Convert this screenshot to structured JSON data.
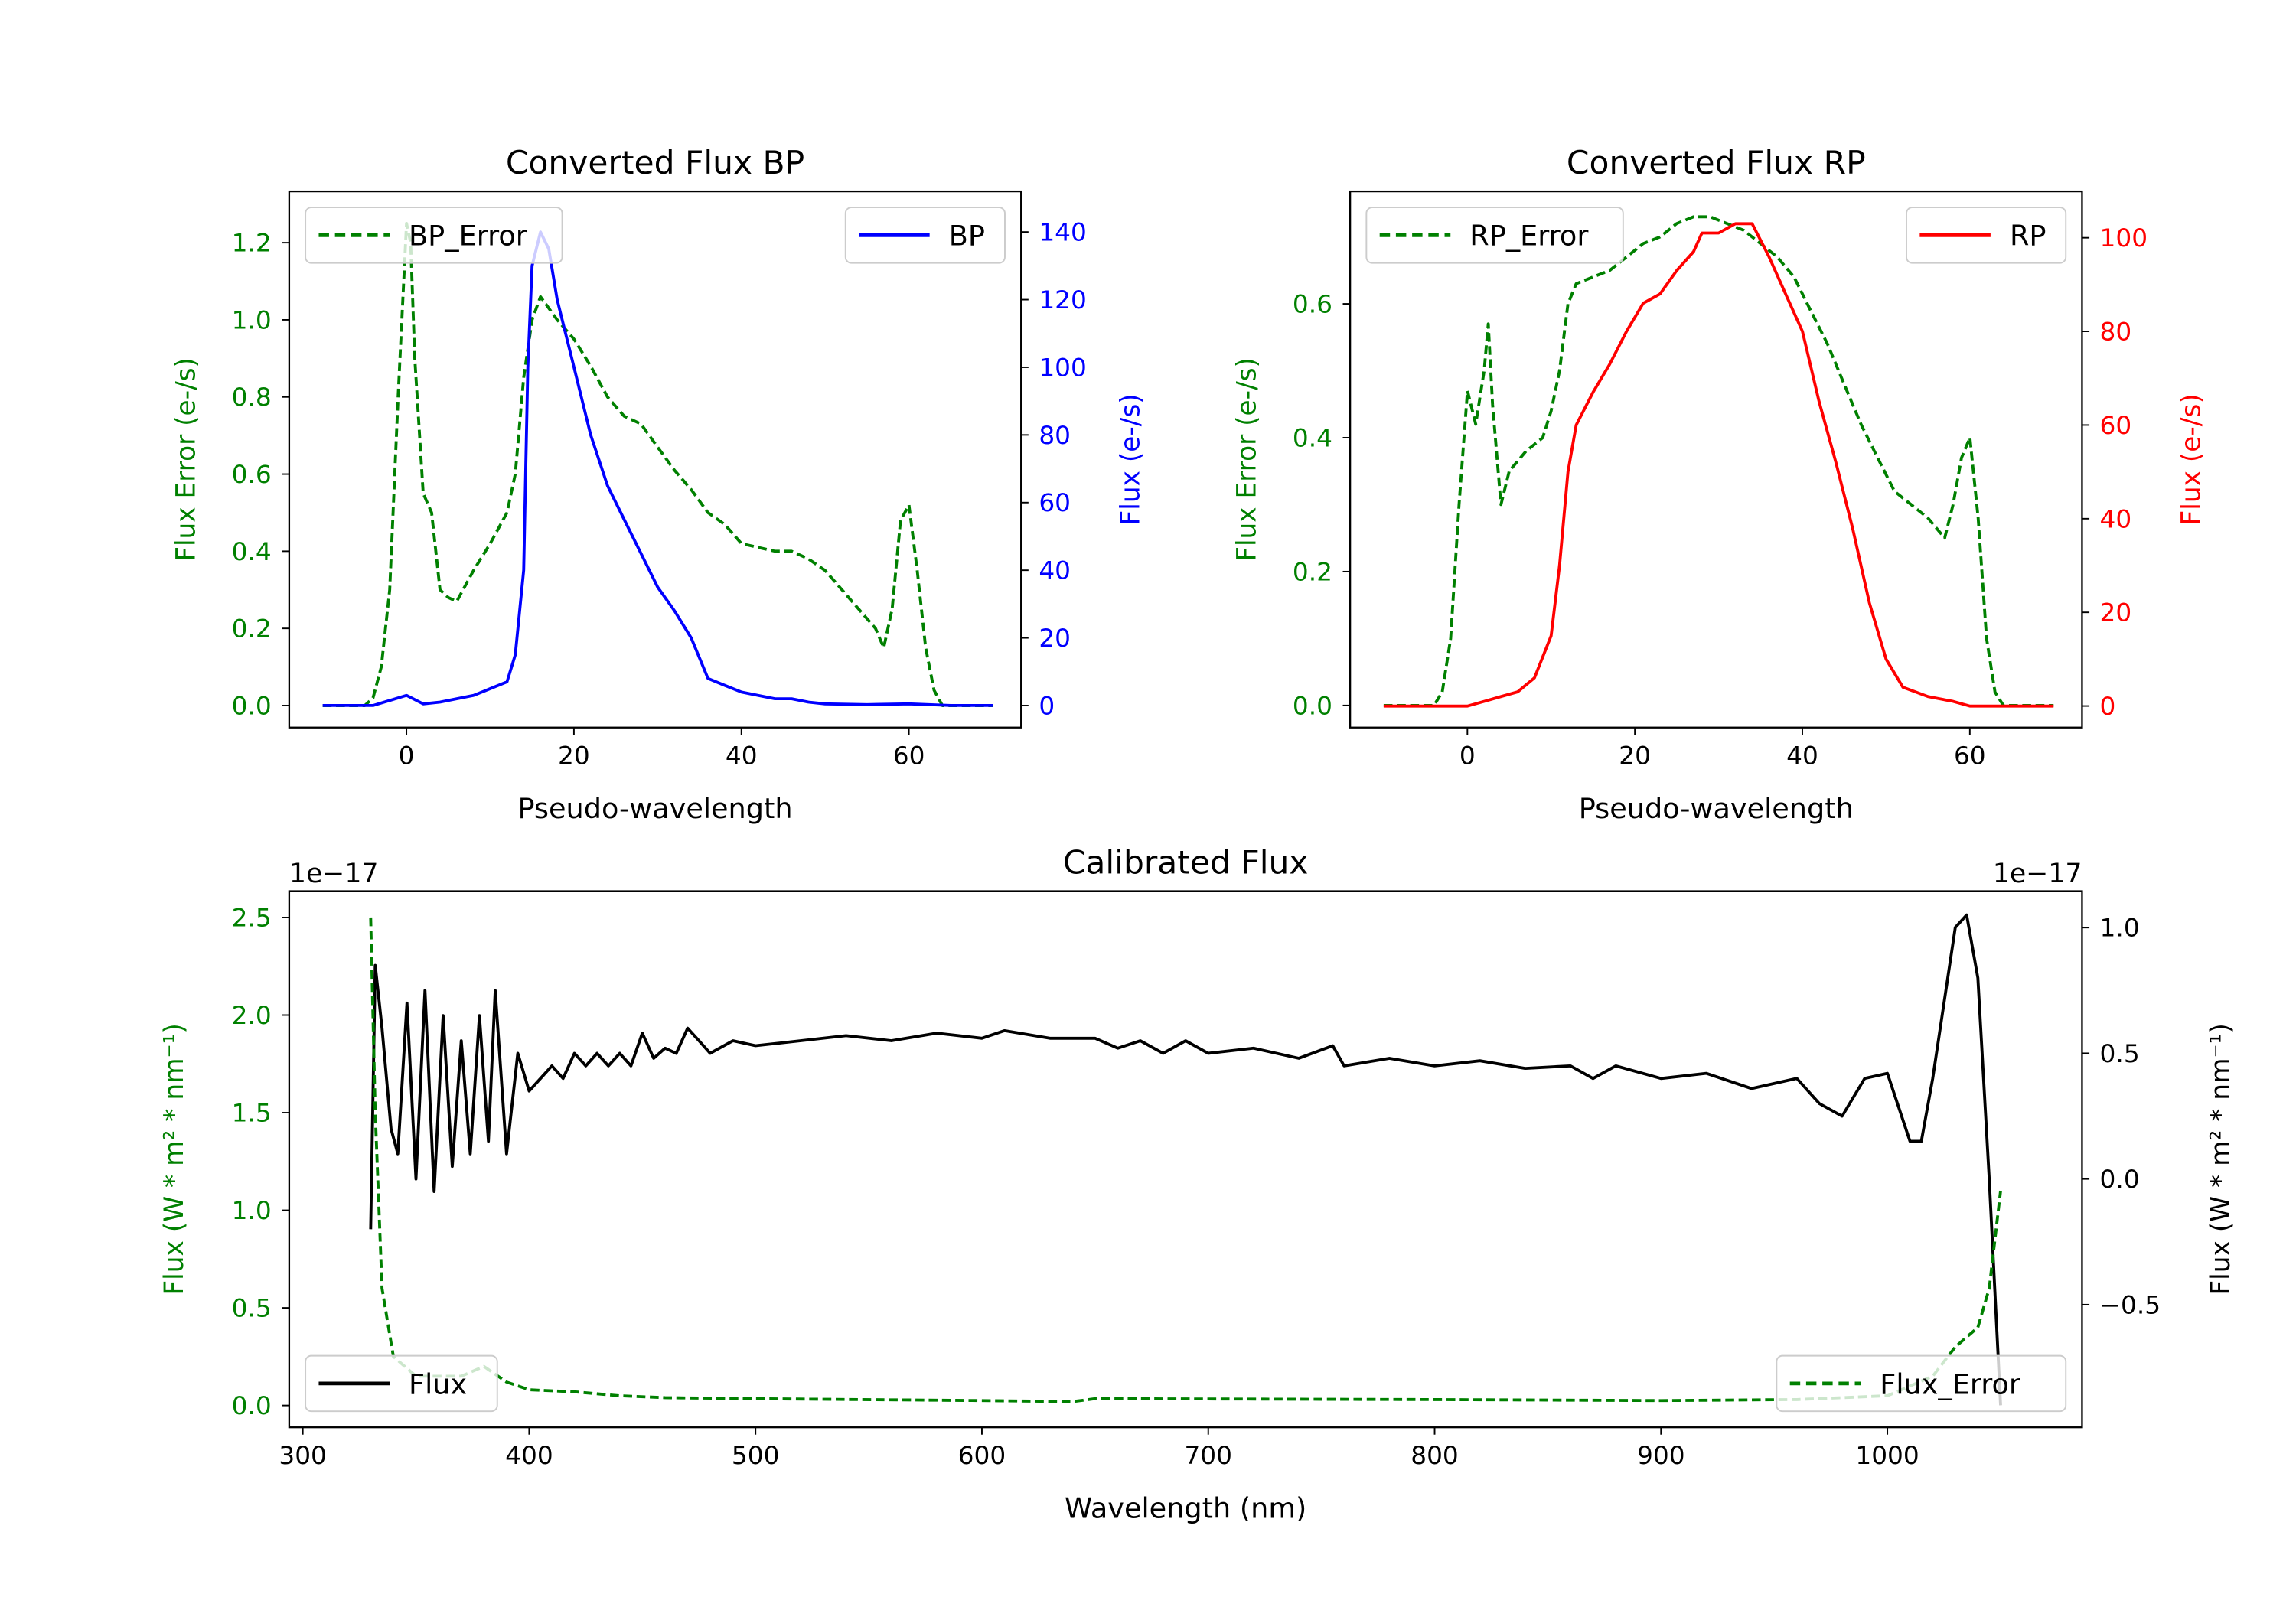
{
  "chart_data": [
    {
      "type": "line",
      "title": "Converted Flux BP",
      "xlabel": "Pseudo-wavelength",
      "ylabel_left": "Flux Error (e-/s)",
      "ylabel_right": "Flux (e-/s)",
      "xlim": [
        -14,
        73.4
      ],
      "ylim_left": [
        -0.057,
        1.333
      ],
      "ylim_right": [
        -6.5,
        152
      ],
      "xticks": [
        0,
        20,
        40,
        60
      ],
      "yticks_left": [
        0.0,
        0.2,
        0.4,
        0.6,
        0.8,
        1.0,
        1.2
      ],
      "yticks_right": [
        0,
        20,
        40,
        60,
        80,
        100,
        120,
        140
      ],
      "left_color": "#008000",
      "right_color": "#0000ff",
      "series": [
        {
          "name": "BP_Error",
          "axis": "left",
          "color": "#008000",
          "style": "dashed",
          "legend": "top-left",
          "x": [
            -10,
            -5,
            -4,
            -3,
            -2,
            -1,
            0,
            0.5,
            1,
            2,
            3,
            4,
            5,
            6,
            8,
            10,
            12,
            13,
            14,
            15,
            16,
            18,
            20,
            22,
            24,
            26,
            28,
            30,
            32,
            34,
            36,
            38,
            40,
            42,
            44,
            46,
            48,
            50,
            52,
            54,
            56,
            57,
            58,
            59,
            60,
            61,
            62,
            63,
            64,
            70
          ],
          "y": [
            0,
            0,
            0.02,
            0.1,
            0.3,
            0.8,
            1.25,
            1.2,
            0.9,
            0.55,
            0.5,
            0.3,
            0.28,
            0.27,
            0.35,
            0.42,
            0.5,
            0.6,
            0.85,
            1.0,
            1.06,
            1.0,
            0.95,
            0.88,
            0.8,
            0.75,
            0.73,
            0.67,
            0.61,
            0.56,
            0.5,
            0.47,
            0.42,
            0.41,
            0.4,
            0.4,
            0.38,
            0.35,
            0.3,
            0.25,
            0.2,
            0.15,
            0.25,
            0.48,
            0.52,
            0.35,
            0.15,
            0.04,
            0,
            0
          ]
        },
        {
          "name": "BP",
          "axis": "right",
          "color": "#0000ff",
          "style": "solid",
          "legend": "top-right",
          "x": [
            -10,
            -4,
            0,
            2,
            4,
            6,
            8,
            10,
            12,
            13,
            14,
            14.5,
            15,
            16,
            17,
            18,
            20,
            22,
            24,
            26,
            28,
            30,
            32,
            34,
            36,
            38,
            40,
            42,
            44,
            46,
            48,
            50,
            55,
            60,
            65,
            70
          ],
          "y": [
            0,
            0,
            3,
            0.5,
            1,
            2,
            3,
            5,
            7,
            15,
            40,
            100,
            130,
            140,
            135,
            120,
            100,
            80,
            65,
            55,
            45,
            35,
            28,
            20,
            8,
            6,
            4,
            3,
            2,
            2,
            1,
            0.5,
            0.3,
            0.5,
            0,
            0
          ]
        }
      ]
    },
    {
      "type": "line",
      "title": "Converted Flux RP",
      "xlabel": "Pseudo-wavelength",
      "ylabel_left": "Flux Error (e-/s)",
      "ylabel_right": "Flux (e-/s)",
      "xlim": [
        -14,
        73.4
      ],
      "ylim_left": [
        -0.033,
        0.768
      ],
      "ylim_right": [
        -4.6,
        109.9
      ],
      "xticks": [
        0,
        20,
        40,
        60
      ],
      "yticks_left": [
        0.0,
        0.2,
        0.4,
        0.6
      ],
      "yticks_right": [
        0,
        20,
        40,
        60,
        80,
        100
      ],
      "left_color": "#008000",
      "right_color": "#ff0000",
      "series": [
        {
          "name": "RP_Error",
          "axis": "left",
          "color": "#008000",
          "style": "dashed",
          "legend": "top-left",
          "x": [
            -10,
            -4,
            -3,
            -2,
            -1,
            0,
            1,
            2,
            2.5,
            3,
            4,
            5,
            7,
            9,
            10,
            11,
            12,
            13,
            15,
            17,
            19,
            21,
            23,
            25,
            27,
            29,
            31,
            33,
            35,
            37,
            39,
            41,
            43,
            45,
            47,
            49,
            51,
            53,
            55,
            57,
            58,
            59,
            60,
            61,
            62,
            63,
            64,
            70
          ],
          "y": [
            0,
            0,
            0.02,
            0.1,
            0.3,
            0.47,
            0.42,
            0.5,
            0.57,
            0.45,
            0.3,
            0.35,
            0.38,
            0.4,
            0.44,
            0.5,
            0.6,
            0.63,
            0.64,
            0.65,
            0.67,
            0.69,
            0.7,
            0.72,
            0.73,
            0.73,
            0.72,
            0.71,
            0.69,
            0.67,
            0.64,
            0.59,
            0.54,
            0.48,
            0.42,
            0.37,
            0.32,
            0.3,
            0.28,
            0.25,
            0.3,
            0.37,
            0.4,
            0.28,
            0.1,
            0.02,
            0,
            0
          ]
        },
        {
          "name": "RP",
          "axis": "right",
          "color": "#ff0000",
          "style": "solid",
          "legend": "top-right",
          "x": [
            -10,
            0,
            2,
            4,
            6,
            8,
            10,
            11,
            12,
            13,
            15,
            17,
            19,
            21,
            23,
            25,
            27,
            28,
            30,
            32,
            34,
            36,
            38,
            40,
            42,
            44,
            46,
            48,
            50,
            52,
            55,
            58,
            60,
            70
          ],
          "y": [
            0,
            0,
            1,
            2,
            3,
            6,
            15,
            30,
            50,
            60,
            67,
            73,
            80,
            86,
            88,
            93,
            97,
            101,
            101,
            103,
            103,
            96,
            88,
            80,
            65,
            52,
            38,
            22,
            10,
            4,
            2,
            1,
            0,
            0
          ]
        }
      ]
    },
    {
      "type": "line",
      "title": "Calibrated Flux",
      "xlabel": "Wavelength (nm)",
      "ylabel_left": "Flux (W * m² * nm⁻¹)",
      "ylabel_right": "Flux (W * m² * nm⁻¹)",
      "offset_left": "1e−17",
      "offset_right": "1e−17",
      "xlim": [
        294,
        1086
      ],
      "ylim_left": [
        -0.112,
        2.635
      ],
      "ylim_right": [
        -0.988,
        1.145
      ],
      "xticks": [
        300,
        400,
        500,
        600,
        700,
        800,
        900,
        1000
      ],
      "yticks_left": [
        0.0,
        0.5,
        1.0,
        1.5,
        2.0,
        2.5
      ],
      "yticks_right": [
        -0.5,
        0.0,
        0.5,
        1.0
      ],
      "left_color": "#008000",
      "right_color": "#000000",
      "series": [
        {
          "name": "Flux",
          "axis": "right",
          "color": "#000000",
          "style": "solid",
          "legend": "bottom-left",
          "x": [
            330,
            332,
            335,
            339,
            342,
            346,
            350,
            354,
            358,
            362,
            366,
            370,
            374,
            378,
            382,
            385,
            390,
            395,
            400,
            405,
            410,
            415,
            420,
            425,
            430,
            435,
            440,
            445,
            450,
            455,
            460,
            465,
            470,
            475,
            480,
            490,
            500,
            520,
            540,
            560,
            580,
            600,
            610,
            630,
            650,
            660,
            670,
            680,
            690,
            700,
            720,
            740,
            755,
            760,
            780,
            800,
            820,
            840,
            860,
            870,
            880,
            900,
            920,
            940,
            960,
            970,
            980,
            990,
            1000,
            1010,
            1015,
            1020,
            1030,
            1035,
            1040,
            1045,
            1050
          ],
          "y": [
            -0.2,
            0.85,
            0.6,
            0.2,
            0.1,
            0.7,
            0,
            0.75,
            -0.05,
            0.65,
            0.05,
            0.55,
            0.1,
            0.65,
            0.15,
            0.75,
            0.1,
            0.5,
            0.35,
            0.4,
            0.45,
            0.4,
            0.5,
            0.45,
            0.5,
            0.45,
            0.5,
            0.45,
            0.58,
            0.48,
            0.52,
            0.5,
            0.6,
            0.55,
            0.5,
            0.55,
            0.53,
            0.55,
            0.57,
            0.55,
            0.58,
            0.56,
            0.59,
            0.56,
            0.56,
            0.52,
            0.55,
            0.5,
            0.55,
            0.5,
            0.52,
            0.48,
            0.53,
            0.45,
            0.48,
            0.45,
            0.47,
            0.44,
            0.45,
            0.4,
            0.45,
            0.4,
            0.42,
            0.36,
            0.4,
            0.3,
            0.25,
            0.4,
            0.42,
            0.15,
            0.15,
            0.4,
            1.0,
            1.05,
            0.8,
            0.0,
            -0.9
          ]
        },
        {
          "name": "Flux_Error",
          "axis": "left",
          "color": "#008000",
          "style": "dashed",
          "legend": "bottom-right",
          "x": [
            330,
            332,
            335,
            340,
            350,
            360,
            370,
            380,
            390,
            400,
            420,
            440,
            460,
            500,
            600,
            640,
            650,
            800,
            900,
            960,
            1000,
            1020,
            1030,
            1040,
            1045,
            1050
          ],
          "y": [
            2.5,
            1.5,
            0.6,
            0.25,
            0.15,
            0.15,
            0.15,
            0.2,
            0.12,
            0.08,
            0.07,
            0.05,
            0.04,
            0.035,
            0.025,
            0.02,
            0.035,
            0.03,
            0.025,
            0.03,
            0.05,
            0.15,
            0.3,
            0.4,
            0.6,
            1.1
          ]
        }
      ]
    }
  ]
}
